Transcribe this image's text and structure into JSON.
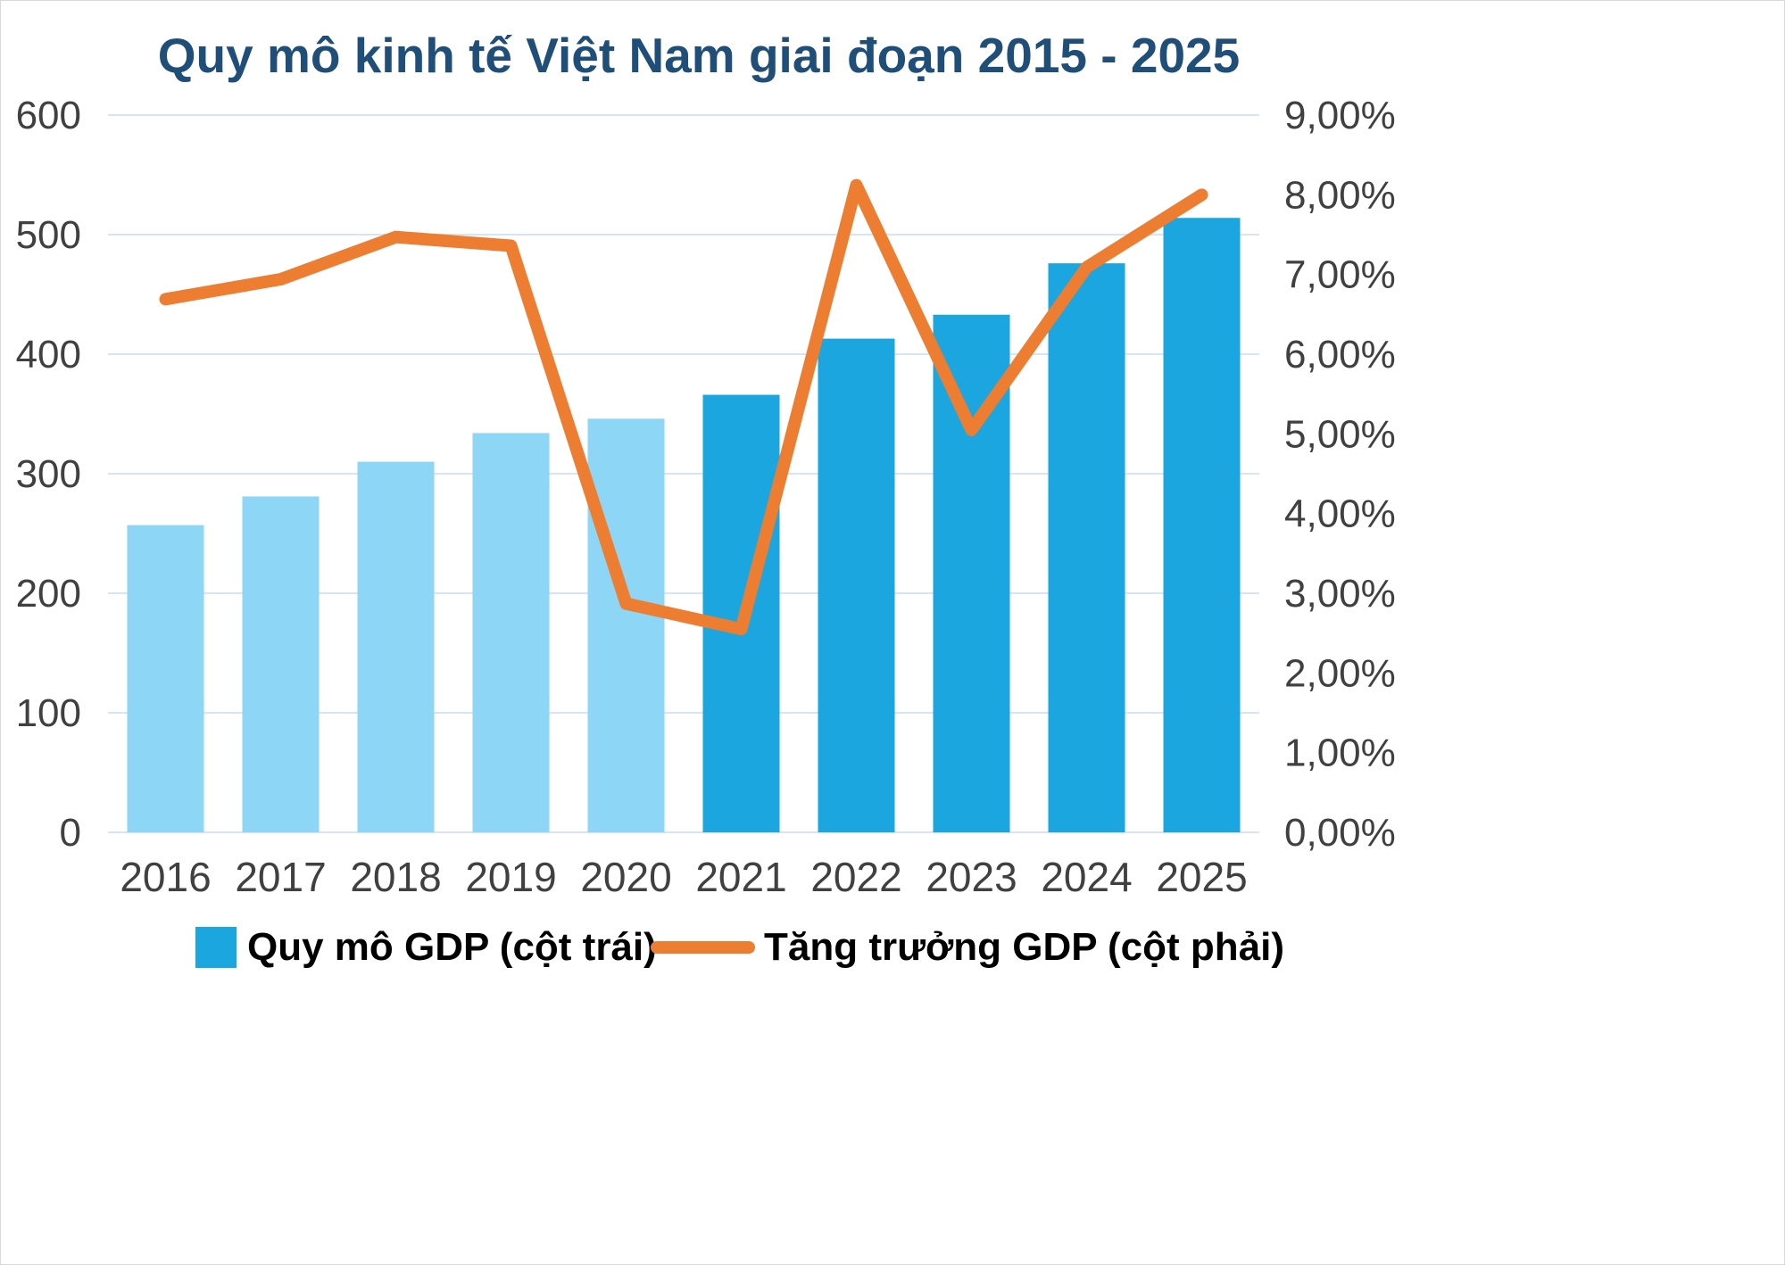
{
  "title": "Quy mô kinh tế Việt Nam giai đoạn 2015 - 2025",
  "chart_data": {
    "type": "bar",
    "subtype": "combo-bar-line-dual-axis",
    "title": "Quy mô kinh tế Việt Nam giai đoạn 2015 - 2025",
    "categories": [
      "2016",
      "2017",
      "2018",
      "2019",
      "2020",
      "2021",
      "2022",
      "2023",
      "2024",
      "2025"
    ],
    "series": [
      {
        "name": "Quy mô GDP (cột trái)",
        "type": "bar",
        "axis": "left",
        "values": [
          257,
          281,
          310,
          334,
          346,
          366,
          413,
          433,
          476,
          514
        ]
      },
      {
        "name": "Tăng trưởng GDP (cột phải)",
        "type": "line",
        "axis": "right",
        "values": [
          6.69,
          6.94,
          7.47,
          7.36,
          2.87,
          2.55,
          8.12,
          5.05,
          7.09,
          8.0
        ]
      }
    ],
    "left_axis": {
      "min": 0,
      "max": 600,
      "step": 100,
      "ticks": [
        "0",
        "100",
        "200",
        "300",
        "400",
        "500",
        "600"
      ]
    },
    "right_axis": {
      "min": 0,
      "max": 9,
      "step": 1,
      "ticks": [
        "0,00%",
        "1,00%",
        "2,00%",
        "3,00%",
        "4,00%",
        "5,00%",
        "6,00%",
        "7,00%",
        "8,00%",
        "9,00%"
      ]
    },
    "legend_position": "bottom",
    "grid": "horizontal",
    "colors": {
      "bar_light": "#8DD6F6",
      "bar_dark": "#1BA6DF",
      "bar_light_count": 5,
      "line": "#ED7D31",
      "title": "#1F4E79",
      "tick_text": "#404040",
      "gridline": "#D8E4F0"
    }
  }
}
